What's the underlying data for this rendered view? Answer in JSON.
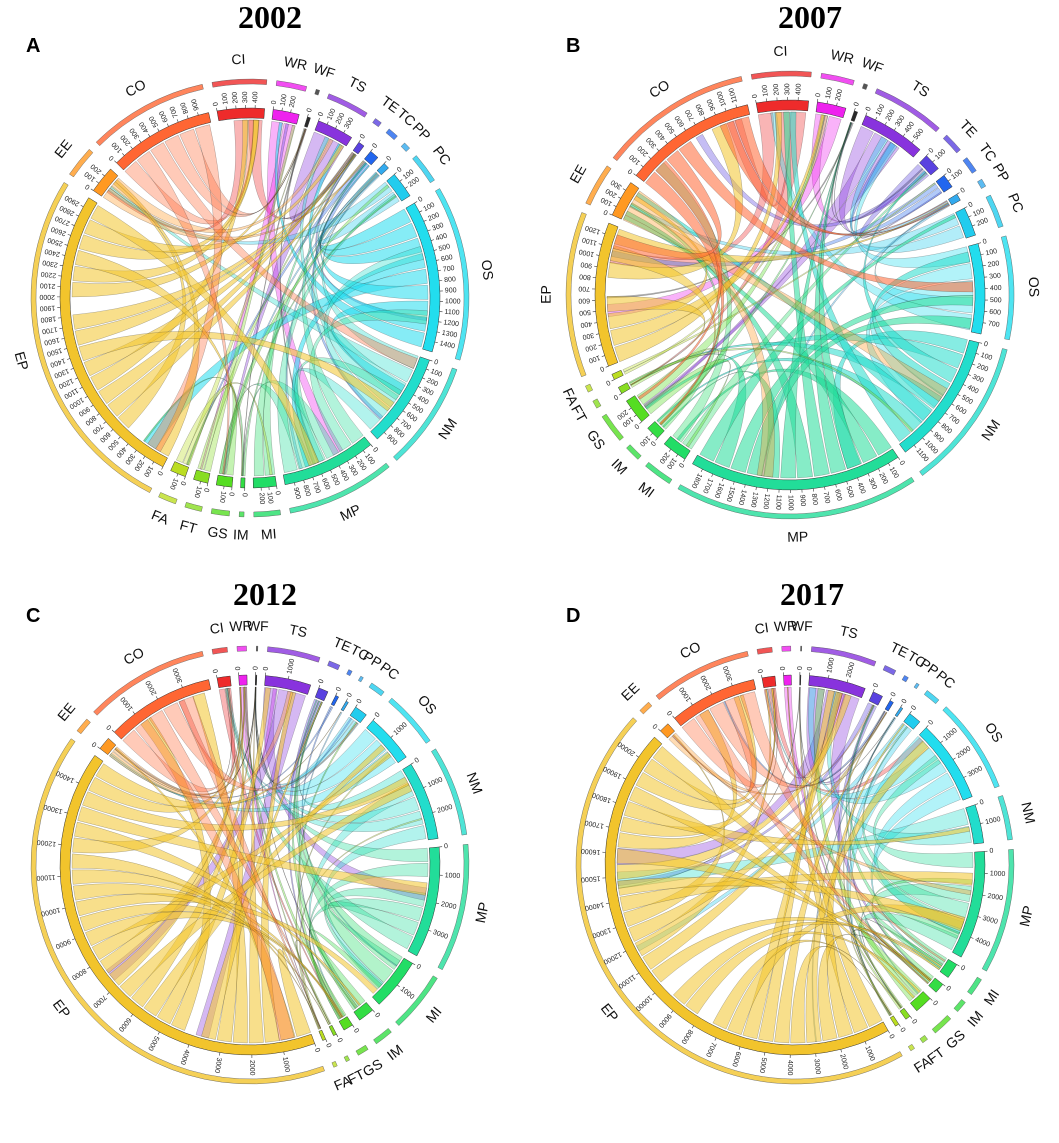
{
  "figure": {
    "panels": [
      {
        "letter": "A",
        "year": "2002",
        "sectors": [
          {
            "code": "CI",
            "value": 450,
            "color": "#ee2b2b",
            "ticks": [
              "0",
              "100",
              "200",
              "300",
              "400"
            ]
          },
          {
            "code": "WR",
            "value": 250,
            "color": "#ee22ee",
            "ticks": [
              "0",
              "100",
              "200"
            ]
          },
          {
            "code": "WF",
            "value": 30,
            "color": "#2a2a2a",
            "ticks": [
              "0"
            ]
          },
          {
            "code": "TS",
            "value": 350,
            "color": "#8833dd",
            "ticks": [
              "0",
              "100",
              "200",
              "300"
            ]
          },
          {
            "code": "TE",
            "value": 60,
            "color": "#5a42e0",
            "ticks": [
              "0"
            ]
          },
          {
            "code": "TC",
            "value": 90,
            "color": "#2266ee",
            "ticks": [
              "0"
            ]
          },
          {
            "code": "PP",
            "value": 60,
            "color": "#33aaee",
            "ticks": [
              "0"
            ]
          },
          {
            "code": "PC",
            "value": 250,
            "color": "#22ccee",
            "ticks": [
              "0",
              "100",
              "200"
            ]
          },
          {
            "code": "OS",
            "value": 1450,
            "color": "#22ddee",
            "ticks": [
              "0",
              "100",
              "200",
              "300",
              "400",
              "500",
              "600",
              "700",
              "800",
              "900",
              "1000",
              "1100",
              "1200",
              "1300",
              "1400"
            ]
          },
          {
            "code": "NM",
            "value": 900,
            "color": "#22ddcc",
            "ticks": [
              "0",
              "100",
              "200",
              "300",
              "400",
              "500",
              "600",
              "700",
              "800",
              "900"
            ]
          },
          {
            "code": "MP",
            "value": 900,
            "color": "#22dd99",
            "ticks": [
              "0",
              "100",
              "200",
              "300",
              "400",
              "500",
              "600",
              "700",
              "800",
              "900"
            ]
          },
          {
            "code": "MI",
            "value": 220,
            "color": "#22dd66",
            "ticks": [
              "0",
              "100",
              "200"
            ]
          },
          {
            "code": "IM",
            "value": 40,
            "color": "#33dd44",
            "ticks": [
              "0"
            ]
          },
          {
            "code": "GS",
            "value": 150,
            "color": "#55dd22",
            "ticks": [
              "0",
              "100"
            ]
          },
          {
            "code": "FT",
            "value": 140,
            "color": "#88dd22",
            "ticks": [
              "0",
              "100"
            ]
          },
          {
            "code": "FA",
            "value": 150,
            "color": "#bbdd22",
            "ticks": [
              "0",
              "100"
            ]
          },
          {
            "code": "EP",
            "value": 2950,
            "color": "#f2c42c",
            "ticks": [
              "0",
              "100",
              "200",
              "300",
              "400",
              "500",
              "600",
              "700",
              "800",
              "900",
              "1000",
              "1100",
              "1200",
              "1300",
              "1400",
              "1500",
              "1600",
              "1700",
              "1800",
              "1900",
              "2000",
              "2100",
              "2200",
              "2300",
              "2400",
              "2500",
              "2600",
              "2700",
              "2800",
              "2900"
            ]
          },
          {
            "code": "EE",
            "value": 260,
            "color": "#ff9922",
            "ticks": [
              "0",
              "100",
              "200"
            ]
          },
          {
            "code": "CO",
            "value": 1000,
            "color": "#ff6633",
            "ticks": [
              "0",
              "100",
              "200",
              "300",
              "400",
              "500",
              "600",
              "700",
              "800",
              "900"
            ]
          }
        ]
      },
      {
        "letter": "B",
        "year": "2007",
        "sectors": [
          {
            "code": "CI",
            "value": 450,
            "color": "#ee2b2b",
            "ticks": [
              "0",
              "100",
              "200",
              "300",
              "400"
            ]
          },
          {
            "code": "WR",
            "value": 250,
            "color": "#ee22ee",
            "ticks": [
              "0",
              "100",
              "200"
            ]
          },
          {
            "code": "WF",
            "value": 30,
            "color": "#2a2a2a",
            "ticks": [
              "0"
            ]
          },
          {
            "code": "TS",
            "value": 550,
            "color": "#8833dd",
            "ticks": [
              "0",
              "100",
              "200",
              "300",
              "400",
              "500"
            ]
          },
          {
            "code": "TE",
            "value": 150,
            "color": "#5a42e0",
            "ticks": [
              "0",
              "100"
            ]
          },
          {
            "code": "TC",
            "value": 120,
            "color": "#2266ee",
            "ticks": [
              "0",
              "100"
            ]
          },
          {
            "code": "PP",
            "value": 60,
            "color": "#33aaee",
            "ticks": [
              "0"
            ]
          },
          {
            "code": "PC",
            "value": 250,
            "color": "#22ccee",
            "ticks": [
              "0",
              "100",
              "200"
            ]
          },
          {
            "code": "OS",
            "value": 780,
            "color": "#22ddee",
            "ticks": [
              "0",
              "100",
              "200",
              "300",
              "400",
              "500",
              "600",
              "700"
            ]
          },
          {
            "code": "NM",
            "value": 1150,
            "color": "#22ddcc",
            "ticks": [
              "0",
              "100",
              "200",
              "300",
              "400",
              "500",
              "600",
              "700",
              "800",
              "900",
              "1000",
              "1100"
            ]
          },
          {
            "code": "MP",
            "value": 1850,
            "color": "#22dd99",
            "ticks": [
              "0",
              "100",
              "200",
              "300",
              "400",
              "500",
              "600",
              "700",
              "800",
              "900",
              "1000",
              "1100",
              "1200",
              "1300",
              "1400",
              "1500",
              "1600",
              "1700",
              "1800"
            ]
          },
          {
            "code": "MI",
            "value": 220,
            "color": "#22dd66",
            "ticks": [
              "0",
              "100",
              "200"
            ]
          },
          {
            "code": "IM",
            "value": 120,
            "color": "#33dd44",
            "ticks": [
              "0",
              "100"
            ]
          },
          {
            "code": "GS",
            "value": 220,
            "color": "#55dd22",
            "ticks": [
              "0",
              "100",
              "200"
            ]
          },
          {
            "code": "FT",
            "value": 60,
            "color": "#88dd22",
            "ticks": [
              "0"
            ]
          },
          {
            "code": "FA",
            "value": 50,
            "color": "#bbdd22",
            "ticks": [
              "0"
            ]
          },
          {
            "code": "EP",
            "value": 1250,
            "color": "#f2c42c",
            "ticks": [
              "0",
              "100",
              "200",
              "300",
              "400",
              "500",
              "600",
              "700",
              "800",
              "900",
              "1000",
              "1100",
              "1200"
            ]
          },
          {
            "code": "EE",
            "value": 320,
            "color": "#ff9922",
            "ticks": [
              "0",
              "100",
              "200",
              "300"
            ]
          },
          {
            "code": "CO",
            "value": 1150,
            "color": "#ff6633",
            "ticks": [
              "0",
              "100",
              "200",
              "300",
              "400",
              "500",
              "600",
              "700",
              "800",
              "900",
              "1000",
              "1100"
            ]
          }
        ]
      },
      {
        "letter": "C",
        "year": "2012",
        "sectors": [
          {
            "code": "CI",
            "value": 400,
            "color": "#ee2b2b",
            "ticks": [
              "0"
            ]
          },
          {
            "code": "WR",
            "value": 250,
            "color": "#ee22ee",
            "ticks": [
              "0"
            ]
          },
          {
            "code": "WF",
            "value": 40,
            "color": "#2a2a2a",
            "ticks": [
              "0"
            ]
          },
          {
            "code": "TS",
            "value": 1400,
            "color": "#8833dd",
            "ticks": [
              "0",
              "1000"
            ]
          },
          {
            "code": "TE",
            "value": 300,
            "color": "#5a42e0",
            "ticks": [
              "0"
            ]
          },
          {
            "code": "TC",
            "value": 100,
            "color": "#2266ee",
            "ticks": [
              "0"
            ]
          },
          {
            "code": "PP",
            "value": 80,
            "color": "#33aaee",
            "ticks": [
              "0"
            ]
          },
          {
            "code": "PC",
            "value": 400,
            "color": "#22ccee",
            "ticks": [
              "0"
            ]
          },
          {
            "code": "OS",
            "value": 1500,
            "color": "#22ddee",
            "ticks": [
              "0",
              "1000"
            ]
          },
          {
            "code": "NM",
            "value": 2400,
            "color": "#22ddcc",
            "ticks": [
              "0",
              "1000",
              "2000"
            ]
          },
          {
            "code": "MP",
            "value": 3400,
            "color": "#22dd99",
            "ticks": [
              "0",
              "1000",
              "2000",
              "3000"
            ]
          },
          {
            "code": "MI",
            "value": 1600,
            "color": "#22dd66",
            "ticks": [
              "0",
              "1000"
            ]
          },
          {
            "code": "IM",
            "value": 500,
            "color": "#33dd44",
            "ticks": [
              "0"
            ]
          },
          {
            "code": "GS",
            "value": 300,
            "color": "#55dd22",
            "ticks": [
              "0"
            ]
          },
          {
            "code": "FT",
            "value": 100,
            "color": "#88dd22",
            "ticks": [
              "0"
            ]
          },
          {
            "code": "FA",
            "value": 100,
            "color": "#bbdd22",
            "ticks": [
              "0"
            ]
          },
          {
            "code": "EP",
            "value": 14500,
            "color": "#f2c42c",
            "ticks": [
              "0",
              "1000",
              "2000",
              "3000",
              "4000",
              "5000",
              "6000",
              "7000",
              "8000",
              "9000",
              "10000",
              "11000",
              "12000",
              "13000",
              "14000"
            ]
          },
          {
            "code": "EE",
            "value": 400,
            "color": "#ff9922",
            "ticks": [
              "0"
            ]
          },
          {
            "code": "CO",
            "value": 3300,
            "color": "#ff6633",
            "ticks": [
              "0",
              "1000",
              "2000",
              "3000"
            ]
          }
        ]
      },
      {
        "letter": "D",
        "year": "2017",
        "sectors": [
          {
            "code": "CI",
            "value": 500,
            "color": "#ee2b2b",
            "ticks": [
              "0"
            ]
          },
          {
            "code": "WR",
            "value": 300,
            "color": "#ee22ee",
            "ticks": [
              "0"
            ]
          },
          {
            "code": "WF",
            "value": 40,
            "color": "#2a2a2a",
            "ticks": [
              "0"
            ]
          },
          {
            "code": "TS",
            "value": 2200,
            "color": "#8833dd",
            "ticks": [
              "0",
              "1000",
              "2000"
            ]
          },
          {
            "code": "TE",
            "value": 400,
            "color": "#5a42e0",
            "ticks": [
              "0"
            ]
          },
          {
            "code": "TC",
            "value": 150,
            "color": "#2266ee",
            "ticks": [
              "0"
            ]
          },
          {
            "code": "PP",
            "value": 100,
            "color": "#33aaee",
            "ticks": [
              "0"
            ]
          },
          {
            "code": "PC",
            "value": 500,
            "color": "#22ccee",
            "ticks": [
              "0"
            ]
          },
          {
            "code": "OS",
            "value": 3200,
            "color": "#22ddee",
            "ticks": [
              "0",
              "1000",
              "2000",
              "3000"
            ]
          },
          {
            "code": "NM",
            "value": 1500,
            "color": "#22ddcc",
            "ticks": [
              "0",
              "1000"
            ]
          },
          {
            "code": "MP",
            "value": 4200,
            "color": "#22dd99",
            "ticks": [
              "0",
              "1000",
              "2000",
              "3000",
              "4000"
            ]
          },
          {
            "code": "MI",
            "value": 600,
            "color": "#22dd66",
            "ticks": [
              "0"
            ]
          },
          {
            "code": "IM",
            "value": 400,
            "color": "#33dd44",
            "ticks": [
              "0"
            ]
          },
          {
            "code": "GS",
            "value": 700,
            "color": "#55dd22",
            "ticks": [
              "0"
            ]
          },
          {
            "code": "FT",
            "value": 200,
            "color": "#88dd22",
            "ticks": [
              "0"
            ]
          },
          {
            "code": "FA",
            "value": 150,
            "color": "#bbdd22",
            "ticks": [
              "0"
            ]
          },
          {
            "code": "EP",
            "value": 20500,
            "color": "#f2c42c",
            "ticks": [
              "0",
              "1000",
              "2000",
              "3000",
              "4000",
              "5000",
              "6000",
              "7000",
              "8000",
              "9000",
              "10000",
              "11000",
              "12000",
              "13000",
              "14000",
              "15000",
              "16000",
              "17000",
              "18000",
              "19000",
              "20000"
            ]
          },
          {
            "code": "EE",
            "value": 400,
            "color": "#ff9922",
            "ticks": [
              "0"
            ]
          },
          {
            "code": "CO",
            "value": 3400,
            "color": "#ff6633",
            "ticks": [
              "0",
              "1000",
              "2000",
              "3000"
            ]
          }
        ]
      }
    ]
  }
}
